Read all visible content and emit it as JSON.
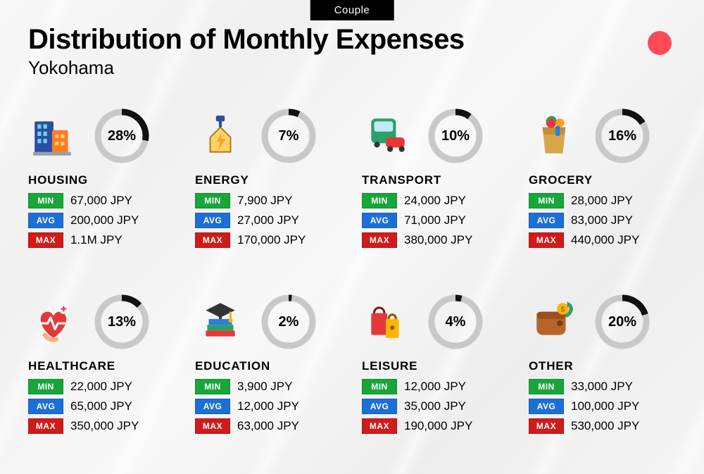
{
  "badge": "Couple",
  "title": "Distribution of Monthly Expenses",
  "subtitle": "Yokohama",
  "accent_color": "#ff4a57",
  "donut": {
    "track_color": "#c8c8c8",
    "progress_color": "#111111",
    "stroke_width": 9,
    "radius": 34
  },
  "stat_labels": {
    "min": "MIN",
    "avg": "AVG",
    "max": "MAX"
  },
  "stat_colors": {
    "min": "#17a63a",
    "avg": "#1d6fd8",
    "max": "#d11a1a"
  },
  "categories": [
    {
      "key": "housing",
      "name": "HOUSING",
      "percent": 28,
      "min": "67,000 JPY",
      "avg": "200,000 JPY",
      "max": "1.1M JPY",
      "icon": "housing"
    },
    {
      "key": "energy",
      "name": "ENERGY",
      "percent": 7,
      "min": "7,900 JPY",
      "avg": "27,000 JPY",
      "max": "170,000 JPY",
      "icon": "energy"
    },
    {
      "key": "transport",
      "name": "TRANSPORT",
      "percent": 10,
      "min": "24,000 JPY",
      "avg": "71,000 JPY",
      "max": "380,000 JPY",
      "icon": "transport"
    },
    {
      "key": "grocery",
      "name": "GROCERY",
      "percent": 16,
      "min": "28,000 JPY",
      "avg": "83,000 JPY",
      "max": "440,000 JPY",
      "icon": "grocery"
    },
    {
      "key": "healthcare",
      "name": "HEALTHCARE",
      "percent": 13,
      "min": "22,000 JPY",
      "avg": "65,000 JPY",
      "max": "350,000 JPY",
      "icon": "healthcare"
    },
    {
      "key": "education",
      "name": "EDUCATION",
      "percent": 2,
      "min": "3,900 JPY",
      "avg": "12,000 JPY",
      "max": "63,000 JPY",
      "icon": "education"
    },
    {
      "key": "leisure",
      "name": "LEISURE",
      "percent": 4,
      "min": "12,000 JPY",
      "avg": "35,000 JPY",
      "max": "190,000 JPY",
      "icon": "leisure"
    },
    {
      "key": "other",
      "name": "OTHER",
      "percent": 20,
      "min": "33,000 JPY",
      "avg": "100,000 JPY",
      "max": "530,000 JPY",
      "icon": "other"
    }
  ]
}
